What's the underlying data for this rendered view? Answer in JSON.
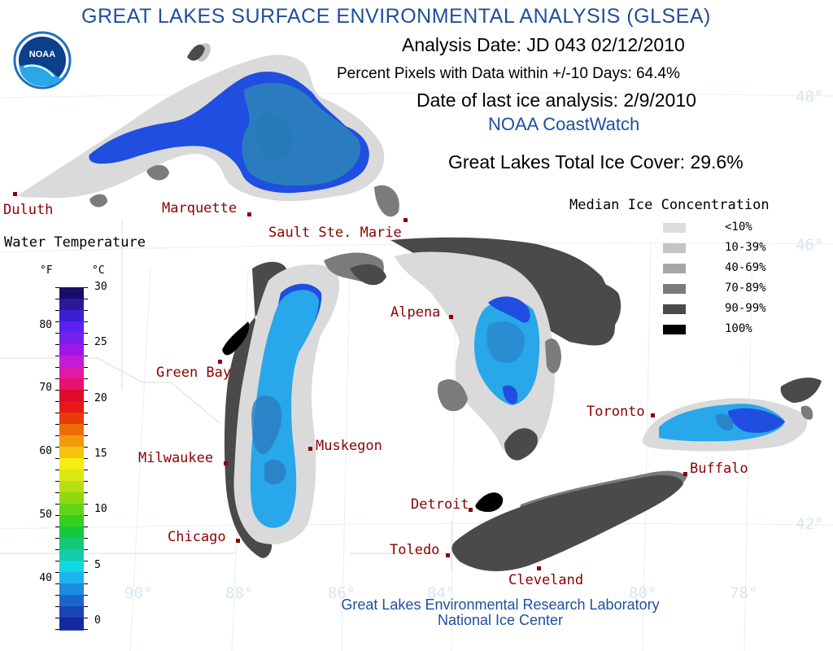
{
  "title": "GREAT LAKES SURFACE ENVIRONMENTAL ANALYSIS (GLSEA)",
  "analysis_date": "Analysis Date:  JD 043 02/12/2010",
  "percent_pixels": "Percent Pixels with Data within +/-10 Days:  64.4%",
  "last_ice": "Date of last ice analysis: 2/9/2010",
  "coastwatch": "NOAA CoastWatch",
  "total_ice": "Great Lakes Total Ice Cover:  29.6%",
  "logo_text": "NOAA",
  "ice_legend": {
    "title": "Median Ice Concentration",
    "items": [
      {
        "label": "<10%",
        "color": "#dcdcdc"
      },
      {
        "label": "10-39%",
        "color": "#c4c4c4"
      },
      {
        "label": "40-69%",
        "color": "#a6a6a6"
      },
      {
        "label": "70-89%",
        "color": "#7b7b7b"
      },
      {
        "label": "90-99%",
        "color": "#4a4a4a"
      },
      {
        "label": "100%",
        "color": "#000000"
      }
    ]
  },
  "temp_scale": {
    "title": "Water Temperature",
    "unit_f": "°F",
    "unit_c": "°C",
    "f_ticks": [
      "80",
      "70",
      "60",
      "50",
      "40"
    ],
    "c_ticks": [
      "30",
      "25",
      "20",
      "15",
      "10",
      "5",
      "0"
    ],
    "colors": [
      "#1a0e6b",
      "#2a1a9a",
      "#3b1fd0",
      "#5a22f0",
      "#7a1ef0",
      "#9d18e8",
      "#c41cd6",
      "#e01aa8",
      "#e81070",
      "#e00a2a",
      "#e61818",
      "#e83a0a",
      "#ee6a08",
      "#f39a0a",
      "#f5c40c",
      "#f5ee10",
      "#d9e812",
      "#b6de10",
      "#8fd812",
      "#62d416",
      "#35d01c",
      "#16c83a",
      "#14c878",
      "#12ccb0",
      "#12d8e0",
      "#1cb4ec",
      "#1b8ce0",
      "#1a66c8",
      "#1a44b4",
      "#1428a0"
    ]
  },
  "cities": {
    "duluth": "Duluth",
    "marquette": "Marquette",
    "sault": "Sault Ste. Marie",
    "green_bay": "Green Bay",
    "alpena": "Alpena",
    "toronto": "Toronto",
    "muskegon": "Muskegon",
    "milwaukee": "Milwaukee",
    "buffalo": "Buffalo",
    "detroit": "Detroit",
    "chicago": "Chicago",
    "toledo": "Toledo",
    "cleveland": "Cleveland"
  },
  "grid_labels": {
    "lat48": "48°",
    "lat46": "46°",
    "lat42": "42°",
    "lon90": "90°",
    "lon88": "88°",
    "lon86": "86°",
    "lon84": "84°",
    "lon80": "80°",
    "lon78": "78°"
  },
  "footer": {
    "line1": "Great Lakes Environmental Research Laboratory",
    "line2": "National Ice Center"
  }
}
